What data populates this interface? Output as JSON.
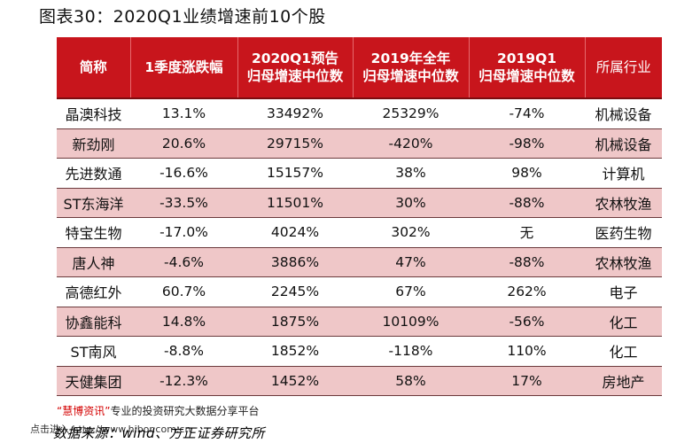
{
  "title": "图表30：2020Q1业绩增速前10个股",
  "table": {
    "headers": [
      {
        "line1": "简称",
        "line2": ""
      },
      {
        "line1": "1季度涨跌幅",
        "line2": ""
      },
      {
        "line1": "2020Q1预告",
        "line2": "归母增速中位数"
      },
      {
        "line1": "2019年全年",
        "line2": "归母增速中位数"
      },
      {
        "line1": "2019Q1",
        "line2": "归母增速中位数"
      },
      {
        "line1": "所属行业",
        "line2": ""
      }
    ],
    "rows": [
      {
        "name": "晶澳科技",
        "q1_change": "13.1%",
        "q1_2020": "33492%",
        "y2019": "25329%",
        "q1_2019": "-74%",
        "industry": "机械设备"
      },
      {
        "name": "新劲刚",
        "q1_change": "20.6%",
        "q1_2020": "29715%",
        "y2019": "-420%",
        "q1_2019": "-98%",
        "industry": "机械设备"
      },
      {
        "name": "先进数通",
        "q1_change": "-16.6%",
        "q1_2020": "15157%",
        "y2019": "38%",
        "q1_2019": "98%",
        "industry": "计算机"
      },
      {
        "name": "ST东海洋",
        "q1_change": "-33.5%",
        "q1_2020": "11501%",
        "y2019": "30%",
        "q1_2019": "-88%",
        "industry": "农林牧渔"
      },
      {
        "name": "特宝生物",
        "q1_change": "-17.0%",
        "q1_2020": "4024%",
        "y2019": "302%",
        "q1_2019": "无",
        "industry": "医药生物"
      },
      {
        "name": "唐人神",
        "q1_change": "-4.6%",
        "q1_2020": "3886%",
        "y2019": "47%",
        "q1_2019": "-88%",
        "industry": "农林牧渔"
      },
      {
        "name": "高德红外",
        "q1_change": "60.7%",
        "q1_2020": "2245%",
        "y2019": "67%",
        "q1_2019": "262%",
        "industry": "电子"
      },
      {
        "name": "协鑫能科",
        "q1_change": "14.8%",
        "q1_2020": "1875%",
        "y2019": "10109%",
        "q1_2019": "-56%",
        "industry": "化工"
      },
      {
        "name": "ST南风",
        "q1_change": "-8.8%",
        "q1_2020": "1852%",
        "y2019": "-118%",
        "q1_2019": "110%",
        "industry": "化工"
      },
      {
        "name": "天健集团",
        "q1_change": "-12.3%",
        "q1_2020": "1452%",
        "y2019": "58%",
        "q1_2019": "17%",
        "industry": "房地产"
      }
    ]
  },
  "watermark": {
    "brand": "“慧博资讯”",
    "text": "专业的投资研究大数据分享平台",
    "link_text": "点击进入 http://www.hibor.com.cn"
  },
  "source": "数据来源：wind、方正证券研究所",
  "colors": {
    "header_bg": "#c8151c",
    "row_shade": "#efc7c8",
    "brand": "#d40000"
  }
}
